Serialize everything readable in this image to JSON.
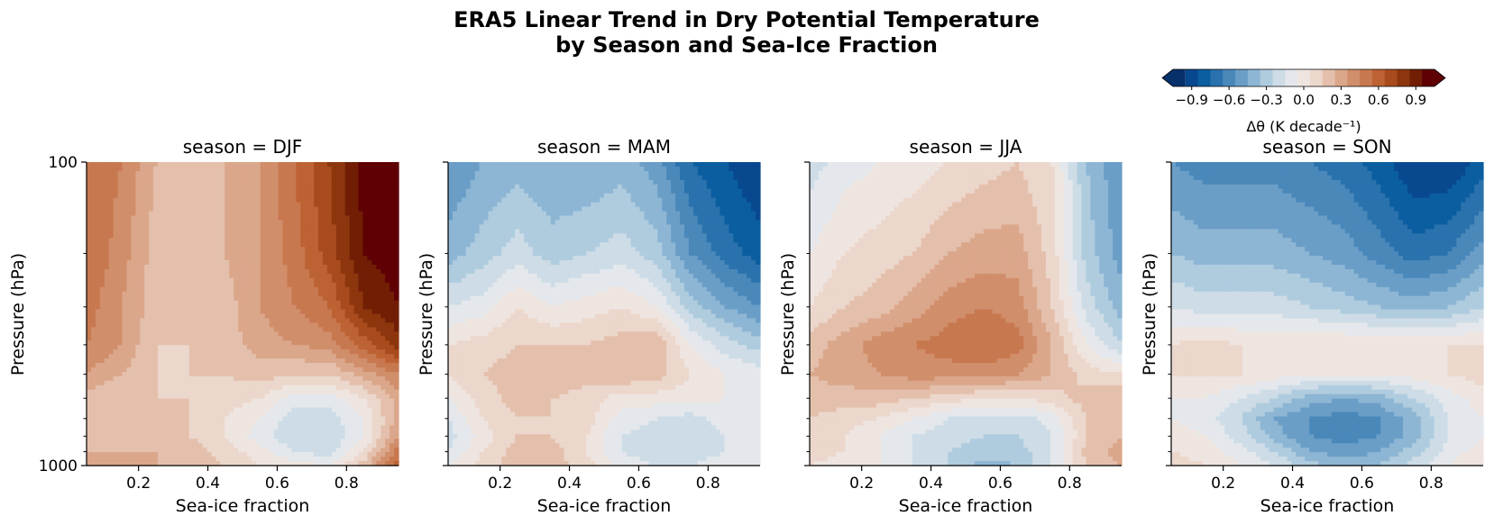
{
  "figure": {
    "title_line1": "ERA5 Linear Trend in Dry Potential Temperature",
    "title_line2": "by Season and Sea-Ice Fraction"
  },
  "colorbar": {
    "label": "Δθ (K decade⁻¹)",
    "tick_labels": [
      "−0.9",
      "−0.6",
      "−0.3",
      "0.0",
      "0.3",
      "0.6",
      "0.9"
    ],
    "ticks": [
      -0.9,
      -0.6,
      -0.3,
      0.0,
      0.3,
      0.6,
      0.9
    ],
    "range": [
      -1.05,
      1.05
    ],
    "levels": 21,
    "extend": "both",
    "colors": [
      "#08306b",
      "#08488e",
      "#0b5ea0",
      "#2a72ad",
      "#4a88ba",
      "#6a9ec7",
      "#8db6d4",
      "#afccdf",
      "#cddce6",
      "#e4e8ec",
      "#efe5e0",
      "#ecd7cc",
      "#e4c0ac",
      "#dba78b",
      "#d18e6b",
      "#c8784f",
      "#bd6233",
      "#a84b1d",
      "#8d360e",
      "#711e05",
      "#5e0004"
    ]
  },
  "chart_data": [
    {
      "type": "heatmap",
      "title": "season = DJF",
      "xlabel": "Sea-ice fraction",
      "ylabel": "Pressure (hPa)",
      "x": [
        0.05,
        0.15,
        0.25,
        0.35,
        0.45,
        0.55,
        0.65,
        0.75,
        0.85,
        0.95
      ],
      "y": [
        100,
        200,
        300,
        400,
        500,
        600,
        700,
        800,
        900,
        1000
      ],
      "yscale": "log",
      "ylim": [
        1000,
        100
      ],
      "xticks": [
        0.2,
        0.4,
        0.6,
        0.8
      ],
      "yticks": [
        100,
        1000
      ],
      "z": [
        [
          0.55,
          0.45,
          0.25,
          0.15,
          0.25,
          0.35,
          0.55,
          0.75,
          1.0,
          1.0
        ],
        [
          0.55,
          0.4,
          0.2,
          0.15,
          0.25,
          0.35,
          0.5,
          0.7,
          0.95,
          1.0
        ],
        [
          0.5,
          0.35,
          0.2,
          0.15,
          0.2,
          0.35,
          0.45,
          0.55,
          0.85,
          0.95
        ],
        [
          0.45,
          0.35,
          0.15,
          0.15,
          0.2,
          0.3,
          0.35,
          0.4,
          0.6,
          0.8
        ],
        [
          0.35,
          0.25,
          0.15,
          0.15,
          0.15,
          0.2,
          0.15,
          0.15,
          0.3,
          0.45
        ],
        [
          0.2,
          0.15,
          0.15,
          0.15,
          0.1,
          0.05,
          -0.1,
          -0.1,
          0.05,
          0.3
        ],
        [
          0.2,
          0.2,
          0.25,
          0.15,
          0.05,
          -0.05,
          -0.2,
          -0.2,
          -0.05,
          0.3
        ],
        [
          0.2,
          0.2,
          0.25,
          0.15,
          0.05,
          -0.1,
          -0.25,
          -0.25,
          -0.05,
          0.35
        ],
        [
          0.25,
          0.25,
          0.25,
          0.2,
          0.1,
          0.0,
          -0.15,
          -0.2,
          0.05,
          0.5
        ],
        [
          0.25,
          0.25,
          0.25,
          0.2,
          0.15,
          0.05,
          0.0,
          -0.05,
          0.2,
          0.65
        ]
      ]
    },
    {
      "type": "heatmap",
      "title": "season = MAM",
      "xlabel": "Sea-ice fraction",
      "ylabel": "Pressure (hPa)",
      "x": [
        0.05,
        0.15,
        0.25,
        0.35,
        0.45,
        0.55,
        0.65,
        0.75,
        0.85,
        0.95
      ],
      "y": [
        100,
        200,
        300,
        400,
        500,
        600,
        700,
        800,
        900,
        1000
      ],
      "yscale": "log",
      "ylim": [
        1000,
        100
      ],
      "xticks": [
        0.2,
        0.4,
        0.6,
        0.8
      ],
      "yticks": [
        100,
        1000
      ],
      "z": [
        [
          -0.55,
          -0.45,
          -0.4,
          -0.45,
          -0.45,
          -0.4,
          -0.5,
          -0.75,
          -0.85,
          -0.95
        ],
        [
          -0.4,
          -0.3,
          -0.2,
          -0.3,
          -0.25,
          -0.2,
          -0.3,
          -0.55,
          -0.7,
          -0.8
        ],
        [
          -0.15,
          -0.1,
          0.05,
          -0.05,
          0.0,
          0.05,
          -0.05,
          -0.3,
          -0.45,
          -0.55
        ],
        [
          0.05,
          0.1,
          0.15,
          0.15,
          0.15,
          0.2,
          0.25,
          -0.05,
          -0.2,
          -0.3
        ],
        [
          0.05,
          0.15,
          0.2,
          0.25,
          0.2,
          0.25,
          0.2,
          0.05,
          -0.05,
          -0.1
        ],
        [
          -0.05,
          0.1,
          0.2,
          0.15,
          0.1,
          0.0,
          0.0,
          0.0,
          -0.05,
          -0.05
        ],
        [
          -0.15,
          0.05,
          0.15,
          0.15,
          0.1,
          -0.1,
          -0.15,
          -0.2,
          -0.1,
          -0.05
        ],
        [
          -0.2,
          0.0,
          0.15,
          0.15,
          0.05,
          -0.15,
          -0.2,
          -0.25,
          -0.15,
          -0.1
        ],
        [
          -0.15,
          0.05,
          0.2,
          0.2,
          0.05,
          -0.15,
          -0.2,
          -0.2,
          -0.15,
          -0.1
        ],
        [
          -0.05,
          0.1,
          0.2,
          0.2,
          0.1,
          -0.1,
          -0.15,
          -0.15,
          -0.1,
          -0.05
        ]
      ]
    },
    {
      "type": "heatmap",
      "title": "season = JJA",
      "xlabel": "Sea-ice fraction",
      "ylabel": "Pressure (hPa)",
      "x": [
        0.05,
        0.15,
        0.25,
        0.35,
        0.45,
        0.55,
        0.65,
        0.75,
        0.85,
        0.95
      ],
      "y": [
        100,
        200,
        300,
        400,
        500,
        600,
        700,
        800,
        900,
        1000
      ],
      "yscale": "log",
      "ylim": [
        1000,
        100
      ],
      "xticks": [
        0.2,
        0.4,
        0.6,
        0.8
      ],
      "yticks": [
        100,
        1000
      ],
      "z": [
        [
          -0.2,
          -0.1,
          -0.05,
          0.0,
          0.05,
          0.1,
          0.15,
          0.05,
          -0.35,
          -0.55
        ],
        [
          -0.05,
          0.05,
          0.1,
          0.15,
          0.25,
          0.3,
          0.3,
          0.1,
          -0.3,
          -0.5
        ],
        [
          0.05,
          0.15,
          0.2,
          0.3,
          0.4,
          0.45,
          0.4,
          0.15,
          -0.2,
          -0.4
        ],
        [
          0.2,
          0.3,
          0.4,
          0.45,
          0.5,
          0.55,
          0.5,
          0.25,
          -0.05,
          -0.25
        ],
        [
          0.25,
          0.3,
          0.35,
          0.4,
          0.4,
          0.4,
          0.35,
          0.25,
          0.1,
          0.05
        ],
        [
          0.2,
          0.2,
          0.2,
          0.15,
          0.1,
          0.05,
          0.05,
          0.1,
          0.2,
          0.25
        ],
        [
          0.15,
          0.1,
          0.05,
          -0.05,
          -0.15,
          -0.2,
          -0.2,
          -0.1,
          0.15,
          0.25
        ],
        [
          0.1,
          0.05,
          -0.05,
          -0.15,
          -0.2,
          -0.25,
          -0.25,
          -0.15,
          0.15,
          0.25
        ],
        [
          0.1,
          0.05,
          -0.05,
          -0.15,
          -0.25,
          -0.3,
          -0.3,
          -0.15,
          0.2,
          0.3
        ],
        [
          0.05,
          0.0,
          -0.05,
          -0.15,
          -0.25,
          -0.4,
          -0.35,
          -0.15,
          0.15,
          0.25
        ]
      ]
    },
    {
      "type": "heatmap",
      "title": "season = SON",
      "xlabel": "Sea-ice fraction",
      "ylabel": "Pressure (hPa)",
      "x": [
        0.05,
        0.15,
        0.25,
        0.35,
        0.45,
        0.55,
        0.65,
        0.75,
        0.85,
        0.95
      ],
      "y": [
        100,
        200,
        300,
        400,
        500,
        600,
        700,
        800,
        900,
        1000
      ],
      "yscale": "log",
      "ylim": [
        1000,
        100
      ],
      "xticks": [
        0.2,
        0.4,
        0.6,
        0.8
      ],
      "yticks": [
        100,
        1000
      ],
      "z": [
        [
          -0.55,
          -0.6,
          -0.6,
          -0.6,
          -0.65,
          -0.7,
          -0.8,
          -0.95,
          -0.95,
          -0.8
        ],
        [
          -0.35,
          -0.4,
          -0.4,
          -0.4,
          -0.45,
          -0.5,
          -0.6,
          -0.7,
          -0.65,
          -0.5
        ],
        [
          -0.15,
          -0.2,
          -0.2,
          -0.2,
          -0.25,
          -0.3,
          -0.35,
          -0.4,
          -0.35,
          -0.25
        ],
        [
          0.05,
          0.1,
          0.05,
          0.05,
          0.05,
          0.05,
          0.05,
          0.05,
          0.05,
          0.05
        ],
        [
          0.05,
          0.05,
          0.05,
          0.0,
          -0.05,
          -0.05,
          -0.05,
          0.0,
          0.05,
          0.1
        ],
        [
          -0.05,
          -0.05,
          -0.15,
          -0.25,
          -0.4,
          -0.45,
          -0.4,
          -0.25,
          -0.1,
          0.0
        ],
        [
          -0.05,
          -0.1,
          -0.25,
          -0.45,
          -0.55,
          -0.6,
          -0.55,
          -0.4,
          -0.15,
          -0.05
        ],
        [
          0.0,
          -0.05,
          -0.2,
          -0.4,
          -0.55,
          -0.6,
          -0.55,
          -0.4,
          -0.15,
          -0.05
        ],
        [
          0.05,
          0.0,
          -0.1,
          -0.25,
          -0.45,
          -0.5,
          -0.45,
          -0.3,
          -0.1,
          0.0
        ],
        [
          0.1,
          0.05,
          -0.05,
          -0.15,
          -0.3,
          -0.4,
          -0.35,
          -0.2,
          -0.05,
          0.05
        ]
      ]
    }
  ]
}
